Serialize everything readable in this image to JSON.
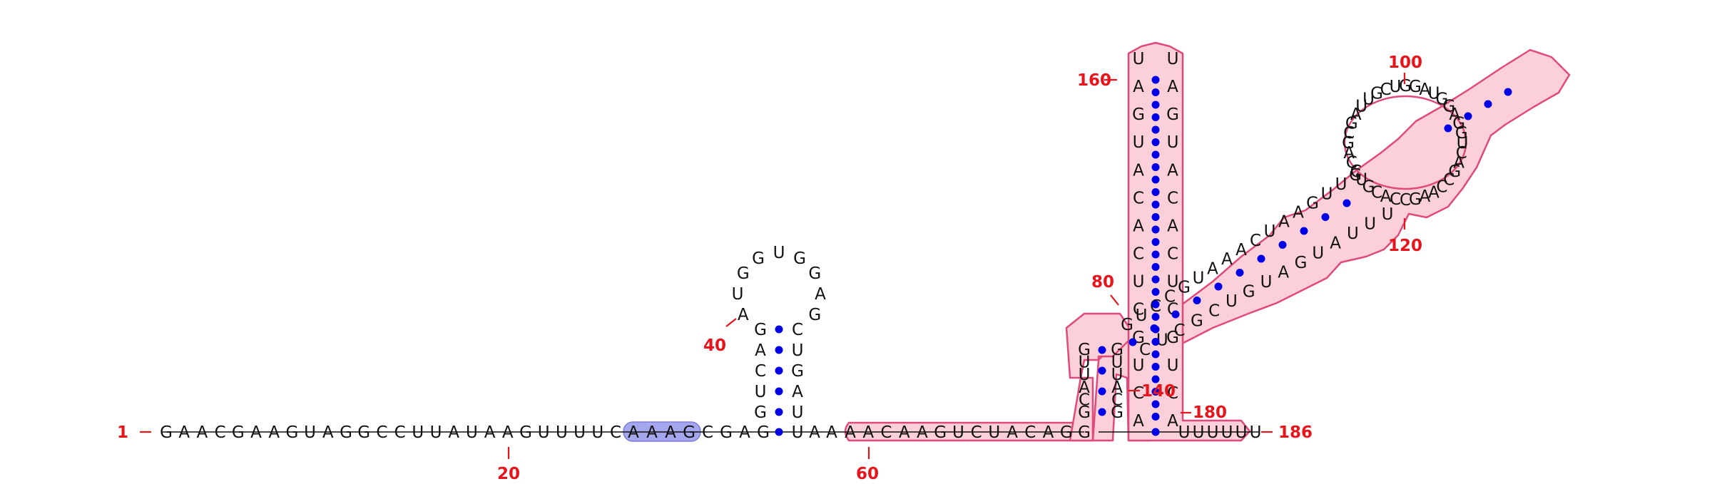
{
  "diagram": {
    "colors": {
      "nucleotide": "#111111",
      "position_label": "#e8141b",
      "base_pair_dot": "#0000e6",
      "highlight_fill": "#a4a6ee",
      "region_fill": "#fbd0d8",
      "region_stroke": "#e04a7a"
    },
    "position_labels": [
      {
        "id": "pos-1",
        "text": "1"
      },
      {
        "id": "pos-20",
        "text": "20"
      },
      {
        "id": "pos-40",
        "text": "40"
      },
      {
        "id": "pos-60",
        "text": "60"
      },
      {
        "id": "pos-80",
        "text": "80"
      },
      {
        "id": "pos-100",
        "text": "100"
      },
      {
        "id": "pos-120",
        "text": "120"
      },
      {
        "id": "pos-140",
        "text": "140"
      },
      {
        "id": "pos-160",
        "text": "160"
      },
      {
        "id": "pos-180",
        "text": "180"
      },
      {
        "id": "pos-186",
        "text": "186"
      }
    ],
    "segments": [
      {
        "id": "linear-5prime",
        "seq": "GAACGAAGUAGGCCUUAUAAGUUUUC"
      },
      {
        "id": "highlighted",
        "seq": "AAAG"
      },
      {
        "id": "linker",
        "seq": "CGAG"
      },
      {
        "id": "stem1-5",
        "seq": "GUCAG"
      },
      {
        "id": "hairpin1-loop",
        "seq": "AUGGUGGAG"
      },
      {
        "id": "stem1-3",
        "seq": "CUGAU"
      },
      {
        "id": "linker2",
        "seq": "UAA"
      },
      {
        "id": "linear-mid",
        "seq": "AACAAGUCUACAGG"
      },
      {
        "id": "helixA-5",
        "seq": "GCAUUG"
      },
      {
        "id": "helixB-5",
        "seq": "GUCCGUAAACUAAGUUG"
      },
      {
        "id": "loop-100",
        "seq": "CCAGCGAUUGCUGGAUGGAGGUCAGCCAAGCCACGUC"
      },
      {
        "id": "pseudoknot-stem-5",
        "seq": "CUCGCUGUAGUAUUU"
      },
      {
        "id": "pseudoknot-stem-3",
        "seq": "UAGUACACUCGUCA"
      },
      {
        "id": "tail-3prime",
        "seq": "UUUUUU"
      }
    ]
  }
}
